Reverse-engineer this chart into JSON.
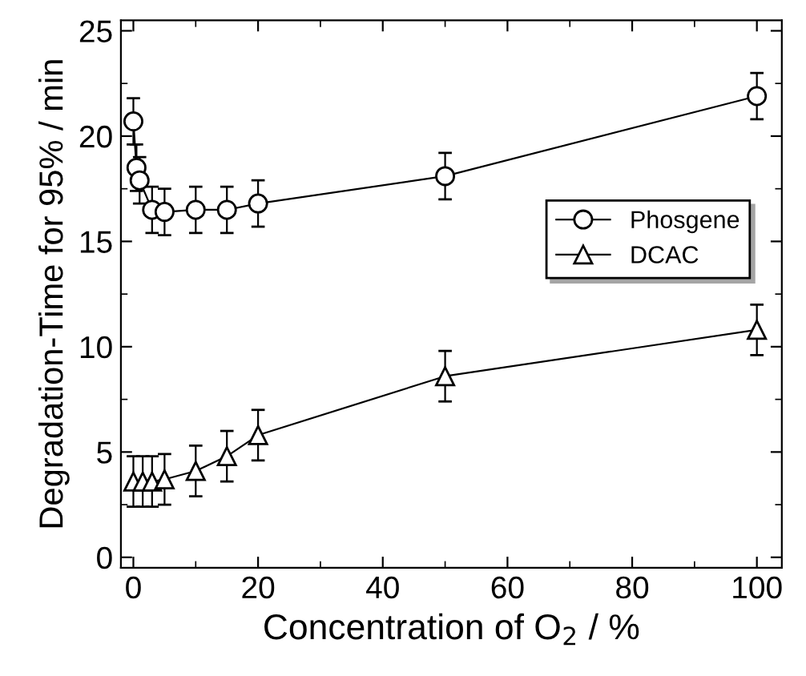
{
  "chart_data": {
    "type": "line",
    "xlabel": "Concentration of O$_{2}$ / %",
    "ylabel": "Degradation-Time for 95% / min",
    "xlim": [
      -2,
      104
    ],
    "ylim": [
      -0.5,
      25.5
    ],
    "xticks": [
      0,
      20,
      40,
      60,
      80,
      100
    ],
    "yticks": [
      0,
      5,
      10,
      15,
      20,
      25
    ],
    "legend": "right",
    "grid": false,
    "series": [
      {
        "name": "Phosgene",
        "marker": "circle",
        "color": "#000000",
        "x": [
          0,
          0.5,
          1,
          3,
          5,
          10,
          15,
          20,
          50,
          100
        ],
        "values": [
          20.7,
          18.5,
          17.9,
          16.5,
          16.4,
          16.5,
          16.5,
          16.8,
          18.1,
          21.9
        ],
        "errors": [
          1.1,
          1.1,
          1.1,
          1.1,
          1.1,
          1.1,
          1.1,
          1.1,
          1.1,
          1.1
        ]
      },
      {
        "name": "DCAC",
        "marker": "triangle",
        "color": "#000000",
        "x": [
          0,
          1.5,
          3,
          5,
          10,
          15,
          20,
          50,
          100
        ],
        "values": [
          3.6,
          3.6,
          3.6,
          3.7,
          4.1,
          4.8,
          5.8,
          8.6,
          10.8
        ],
        "errors": [
          1.2,
          1.2,
          1.2,
          1.2,
          1.2,
          1.2,
          1.2,
          1.2,
          1.2
        ]
      }
    ]
  }
}
